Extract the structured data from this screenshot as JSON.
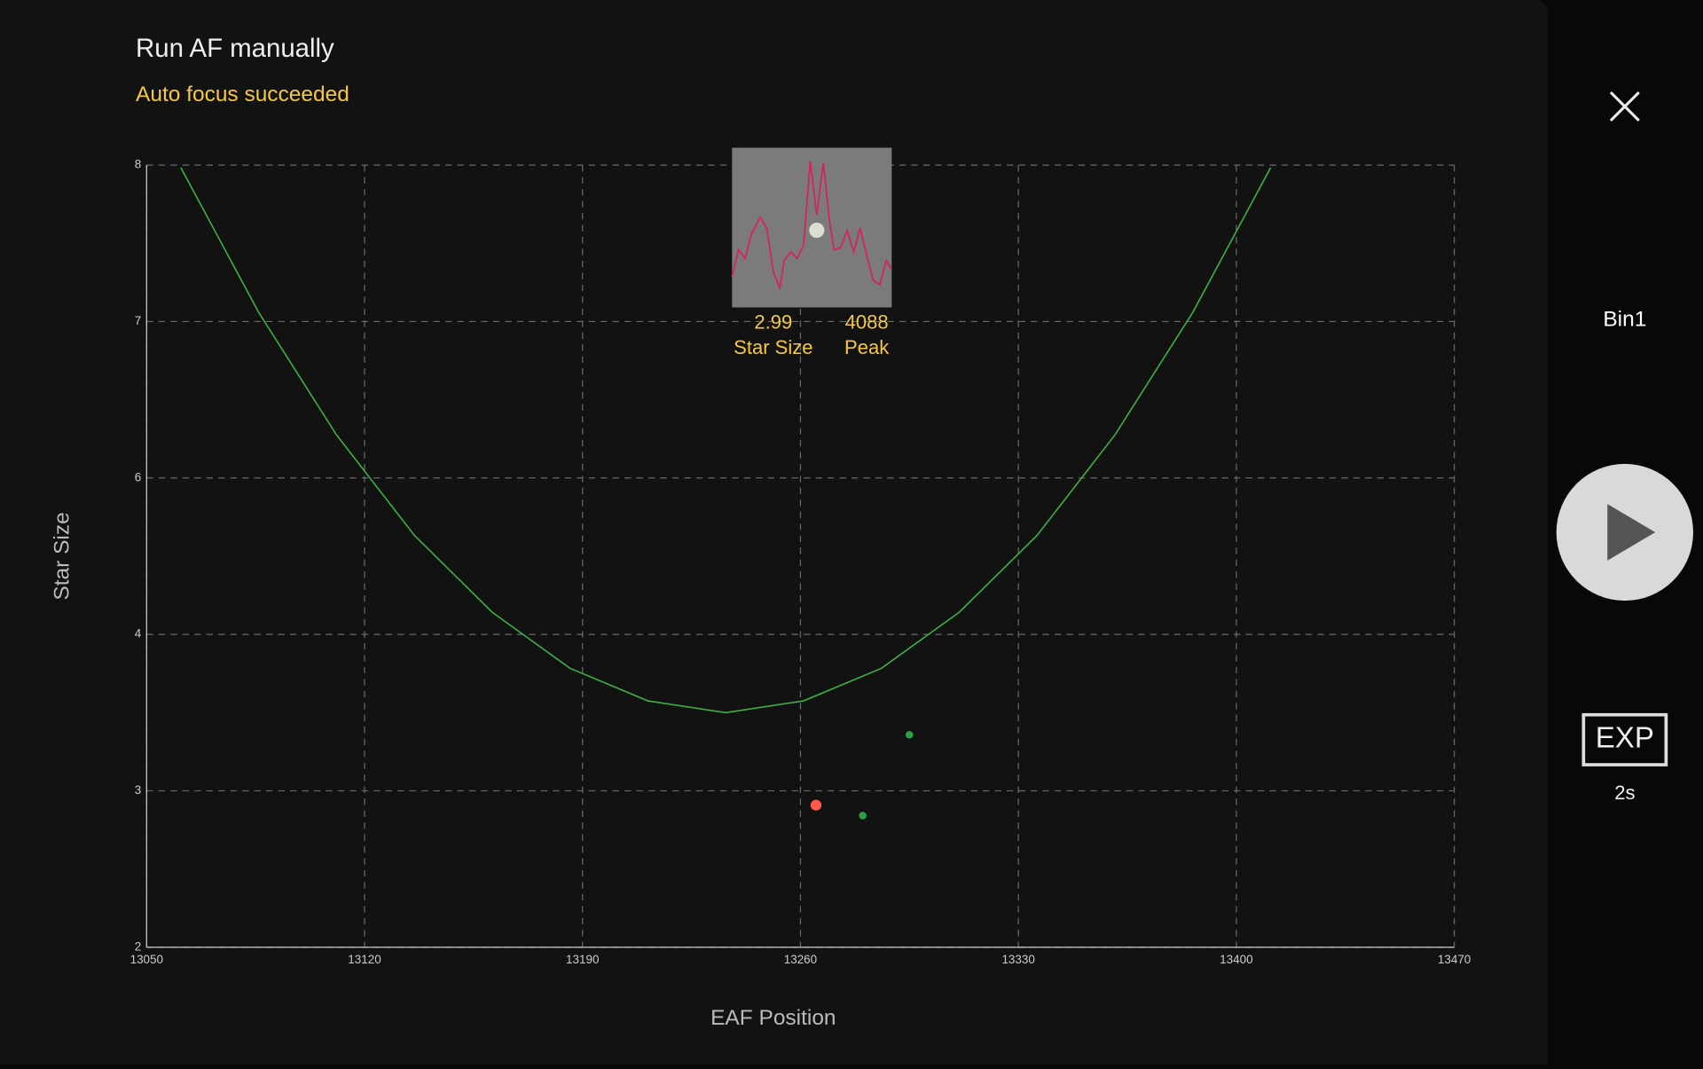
{
  "header": {
    "title": "Run AF manually",
    "status": "Auto focus succeeded"
  },
  "star_info": {
    "star_size": 2.99,
    "star_size_label": "Star Size",
    "peak": 4088,
    "peak_label": "Peak"
  },
  "sidebar": {
    "bin": "Bin1",
    "exp_button": "EXP",
    "exposure": "2s"
  },
  "chart_data": {
    "type": "scatter",
    "xlabel": "EAF Position",
    "ylabel": "Star Size",
    "xlim": [
      13050,
      13470
    ],
    "xticks": [
      13050,
      13120,
      13190,
      13260,
      13330,
      13400,
      13470
    ],
    "ylim": [
      2,
      8
    ],
    "yticks": [
      2,
      {
        "value": 3.2,
        "label": "3"
      },
      {
        "value": 4.4,
        "label": "4"
      },
      {
        "value": 5.6,
        "label": "6"
      },
      {
        "value": 6.8,
        "label": "7"
      },
      8
    ],
    "grid": true,
    "series": [
      {
        "type": "line",
        "color": "#3cb043",
        "x": [
          13061,
          13086,
          13111,
          13136,
          13161,
          13186,
          13211,
          13236,
          13261,
          13286,
          13311,
          13336,
          13361,
          13386,
          13411
        ],
        "values": [
          7.98,
          6.87,
          5.93,
          5.16,
          4.57,
          4.14,
          3.89,
          3.8,
          3.89,
          4.14,
          4.57,
          5.16,
          5.93,
          6.87,
          7.98
        ]
      },
      {
        "color": "#ff5a4a",
        "x": [
          13265
        ],
        "values": [
          3.09
        ]
      },
      {
        "color": "#2ea043",
        "x": [
          13280,
          13295
        ],
        "values": [
          3.01,
          3.63
        ]
      }
    ]
  }
}
